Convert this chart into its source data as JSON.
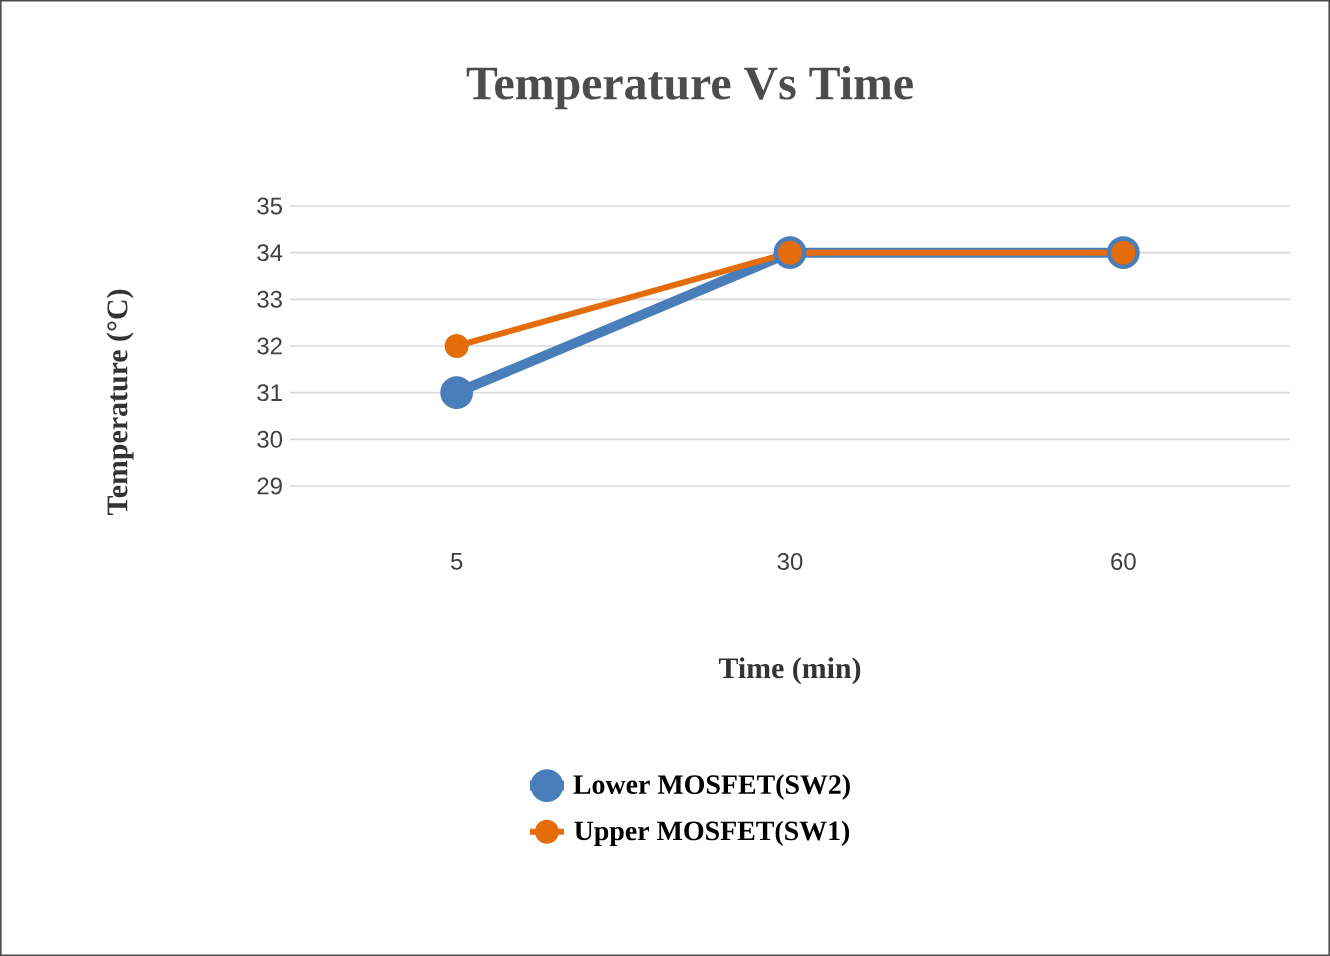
{
  "chart_data": {
    "type": "line",
    "title": "Temperature Vs Time",
    "xlabel": "Time (min)",
    "ylabel": "Temperature (°C)",
    "categories": [
      "5",
      "30",
      "60"
    ],
    "series": [
      {
        "name": "Lower MOSFET(SW2)",
        "color": "#4a7ebb",
        "values": [
          31,
          34,
          34
        ]
      },
      {
        "name": "Upper MOSFET(SW1)",
        "color": "#e46c0a",
        "values": [
          32,
          34,
          34
        ]
      }
    ],
    "ylim": [
      29,
      35
    ],
    "yticks": [
      29,
      30,
      31,
      32,
      33,
      34,
      35
    ],
    "grid": "y",
    "legend": "bottom",
    "marker": "circle",
    "line_style": "solid"
  }
}
